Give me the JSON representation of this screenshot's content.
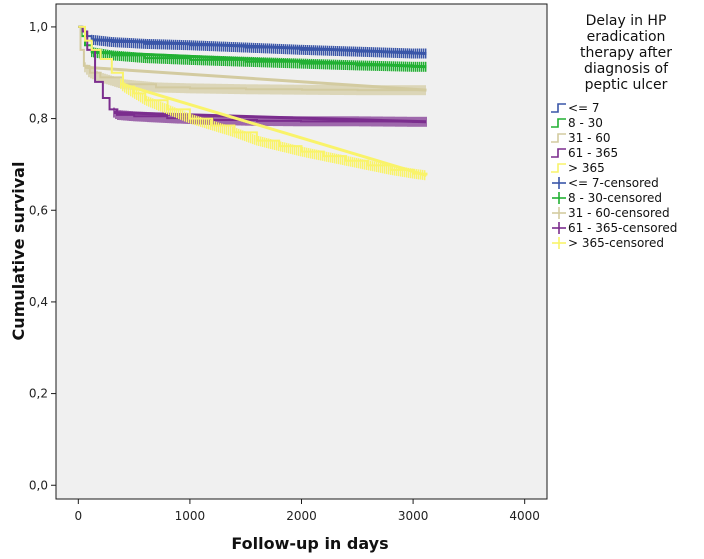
{
  "chart_data": {
    "type": "line",
    "subtype": "kaplan-meier step",
    "xlabel": "Follow-up in days",
    "ylabel": "Cumulative survival",
    "xlim": [
      -200,
      4200
    ],
    "ylim": [
      -0.03,
      1.05
    ],
    "x_ticks": [
      0,
      1000,
      2000,
      3000,
      4000
    ],
    "x_tick_labels": [
      "0",
      "1000",
      "2000",
      "3000",
      "4000"
    ],
    "y_ticks": [
      0.0,
      0.2,
      0.4,
      0.6,
      0.8,
      1.0
    ],
    "y_tick_labels": [
      "0,0",
      "0,2",
      "0,4",
      "0,6",
      "0,8",
      "1,0"
    ],
    "grid": false,
    "background": "#f0f0f0",
    "legend": {
      "title_lines": [
        "Delay in HP",
        "eradication",
        "therapy after",
        "diagnosis of",
        "peptic ulcer"
      ],
      "placement": "right",
      "entries": [
        {
          "label": "<= 7",
          "kind": "line",
          "color": "#3a56a8"
        },
        {
          "label": "8 - 30",
          "kind": "line",
          "color": "#22b033"
        },
        {
          "label": "31 - 60",
          "kind": "line",
          "color": "#d3cba0"
        },
        {
          "label": "61 - 365",
          "kind": "line",
          "color": "#7b2d8e"
        },
        {
          "label": "> 365",
          "kind": "line",
          "color": "#f9f36a"
        },
        {
          "label": "<= 7-censored",
          "kind": "cross",
          "color": "#3a56a8"
        },
        {
          "label": "8 - 30-censored",
          "kind": "cross",
          "color": "#22b033"
        },
        {
          "label": "31 - 60-censored",
          "kind": "cross",
          "color": "#d3cba0"
        },
        {
          "label": "61 - 365-censored",
          "kind": "cross",
          "color": "#7b2d8e"
        },
        {
          "label": "> 365-censored",
          "kind": "cross",
          "color": "#f9f36a"
        }
      ]
    },
    "series": [
      {
        "name": "<= 7",
        "color": "#3a56a8",
        "censor_start": 120,
        "censor_end": 3120,
        "points": [
          [
            0,
            1.0
          ],
          [
            30,
            0.99
          ],
          [
            70,
            0.98
          ],
          [
            120,
            0.972
          ],
          [
            300,
            0.967
          ],
          [
            600,
            0.963
          ],
          [
            1000,
            0.96
          ],
          [
            1500,
            0.955
          ],
          [
            2000,
            0.95
          ],
          [
            2500,
            0.946
          ],
          [
            3000,
            0.942
          ],
          [
            3120,
            0.942
          ]
        ]
      },
      {
        "name": "8 - 30",
        "color": "#22b033",
        "censor_start": 120,
        "censor_end": 3120,
        "points": [
          [
            0,
            1.0
          ],
          [
            30,
            0.98
          ],
          [
            60,
            0.96
          ],
          [
            120,
            0.945
          ],
          [
            300,
            0.938
          ],
          [
            600,
            0.932
          ],
          [
            1000,
            0.928
          ],
          [
            1500,
            0.924
          ],
          [
            2000,
            0.92
          ],
          [
            2500,
            0.916
          ],
          [
            3000,
            0.913
          ],
          [
            3120,
            0.913
          ]
        ]
      },
      {
        "name": "31 - 60",
        "color": "#d3cba0",
        "censor_start": 60,
        "censor_end": 3120,
        "points": [
          [
            0,
            1.0
          ],
          [
            20,
            0.95
          ],
          [
            50,
            0.915
          ],
          [
            100,
            0.9
          ],
          [
            200,
            0.89
          ],
          [
            400,
            0.875
          ],
          [
            700,
            0.868
          ],
          [
            1000,
            0.866
          ],
          [
            1500,
            0.864
          ],
          [
            2000,
            0.863
          ],
          [
            2500,
            0.862
          ],
          [
            3000,
            0.862
          ],
          [
            3120,
            0.862
          ]
        ]
      },
      {
        "name": "61 - 365",
        "color": "#7b2d8e",
        "censor_start": 320,
        "censor_end": 3120,
        "points": [
          [
            0,
            1.0
          ],
          [
            40,
            0.99
          ],
          [
            80,
            0.95
          ],
          [
            150,
            0.88
          ],
          [
            220,
            0.845
          ],
          [
            280,
            0.82
          ],
          [
            350,
            0.808
          ],
          [
            500,
            0.805
          ],
          [
            800,
            0.801
          ],
          [
            1200,
            0.797
          ],
          [
            1600,
            0.795
          ],
          [
            2000,
            0.794
          ],
          [
            2500,
            0.794
          ],
          [
            3000,
            0.793
          ],
          [
            3120,
            0.793
          ]
        ]
      },
      {
        "name": "> 365",
        "color": "#f9f36a",
        "censor_start": 380,
        "censor_end": 3120,
        "points": [
          [
            0,
            1.0
          ],
          [
            20,
            1.0
          ],
          [
            60,
            0.97
          ],
          [
            120,
            0.95
          ],
          [
            200,
            0.93
          ],
          [
            300,
            0.9
          ],
          [
            400,
            0.87
          ],
          [
            500,
            0.855
          ],
          [
            600,
            0.84
          ],
          [
            800,
            0.82
          ],
          [
            1000,
            0.8
          ],
          [
            1200,
            0.785
          ],
          [
            1400,
            0.77
          ],
          [
            1600,
            0.752
          ],
          [
            1800,
            0.74
          ],
          [
            2000,
            0.728
          ],
          [
            2200,
            0.718
          ],
          [
            2400,
            0.708
          ],
          [
            2600,
            0.698
          ],
          [
            2800,
            0.688
          ],
          [
            3000,
            0.68
          ],
          [
            3120,
            0.676
          ]
        ]
      }
    ]
  }
}
